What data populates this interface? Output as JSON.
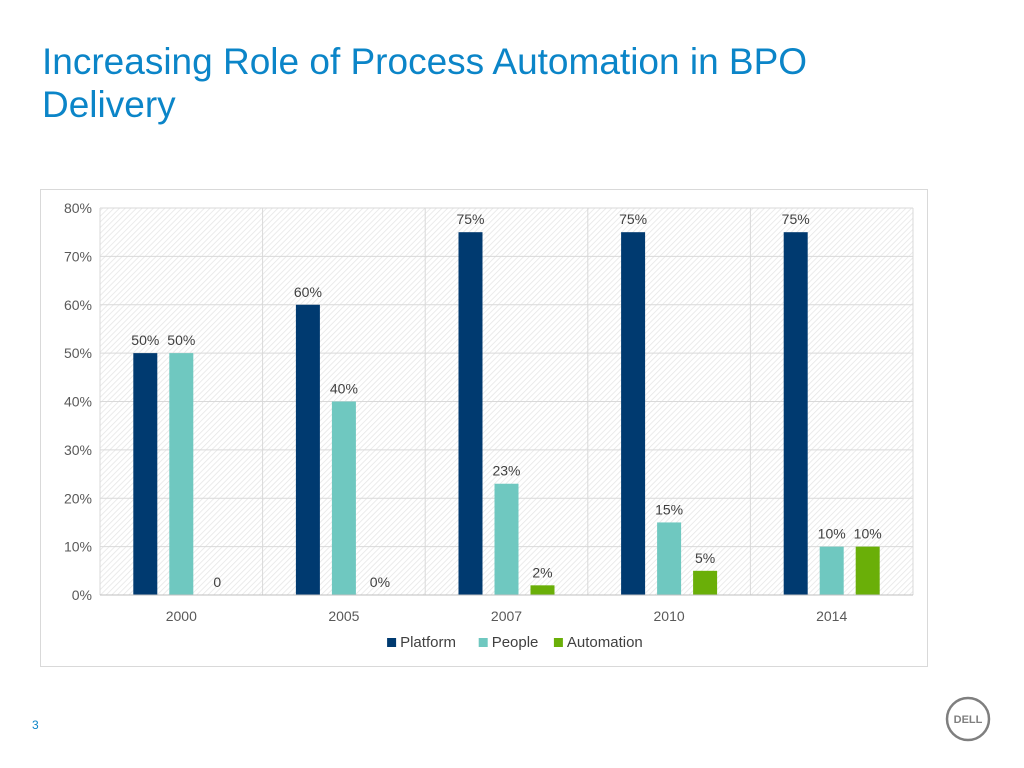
{
  "slide": {
    "title": "Increasing Role of Process Automation in BPO Delivery",
    "page_number": "3",
    "logo_text": "DELL"
  },
  "chart_data": {
    "type": "bar",
    "title": "",
    "xlabel": "",
    "ylabel": "",
    "categories": [
      "2000",
      "2005",
      "2007",
      "2010",
      "2014"
    ],
    "ylim": [
      0,
      0.8
    ],
    "yticks": [
      0,
      0.1,
      0.2,
      0.3,
      0.4,
      0.5,
      0.6,
      0.7,
      0.8
    ],
    "ytick_labels": [
      "0%",
      "10%",
      "20%",
      "30%",
      "40%",
      "50%",
      "60%",
      "70%",
      "80%"
    ],
    "grid": true,
    "legend_position": "bottom",
    "series": [
      {
        "name": "Platform",
        "color": "#003a70",
        "values": [
          0.5,
          0.6,
          0.75,
          0.75,
          0.75
        ],
        "labels": [
          "50%",
          "60%",
          "75%",
          "75%",
          "75%"
        ]
      },
      {
        "name": "People",
        "color": "#6fc8c0",
        "values": [
          0.5,
          0.4,
          0.23,
          0.15,
          0.1
        ],
        "labels": [
          "50%",
          "40%",
          "23%",
          "15%",
          "10%"
        ]
      },
      {
        "name": "Automation",
        "color": "#6aaf08",
        "values": [
          0,
          0,
          0.02,
          0.05,
          0.1
        ],
        "labels": [
          "0",
          "0%",
          "2%",
          "5%",
          "10%"
        ]
      }
    ]
  }
}
